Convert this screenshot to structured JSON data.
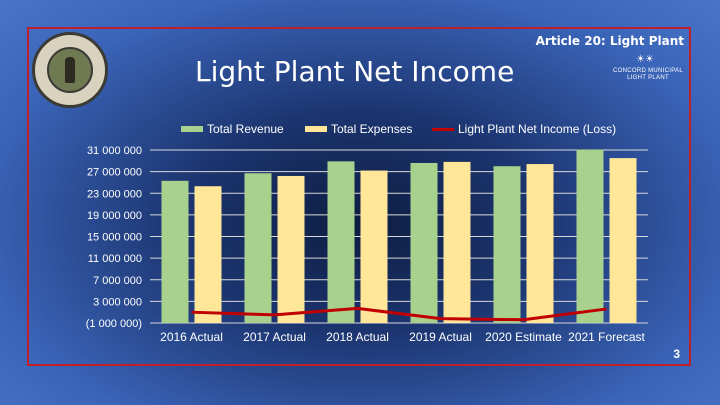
{
  "header": {
    "article": "Article 20: Light Plant",
    "title": "Light Plant Net Income",
    "logo_line1": "CONCORD MUNICIPAL",
    "logo_line2": "LIGHT PLANT"
  },
  "page_number": "3",
  "colors": {
    "revenue": "#a9d18e",
    "expenses": "#ffe699",
    "net_income": "#c00000",
    "gridline": "#d9d9d9"
  },
  "chart_data": {
    "type": "bar",
    "categories": [
      "2016 Actual",
      "2017 Actual",
      "2018 Actual",
      "2019 Actual",
      "2020 Estimate",
      "2021 Forecast"
    ],
    "series": [
      {
        "name": "Total Revenue",
        "type": "bar",
        "values": [
          25300000,
          26700000,
          28900000,
          28600000,
          28000000,
          31100000
        ]
      },
      {
        "name": "Total Expenses",
        "type": "bar",
        "values": [
          24300000,
          26200000,
          27200000,
          28800000,
          28400000,
          29500000
        ]
      },
      {
        "name": "Light Plant Net Income (Loss)",
        "type": "line",
        "values": [
          1000000,
          500000,
          1700000,
          -200000,
          -400000,
          1600000
        ]
      }
    ],
    "y_ticks": [
      "31 000 000",
      "27 000 000",
      "23 000 000",
      "19 000 000",
      "15 000 000",
      "11 000 000",
      "7 000 000",
      "3 000 000",
      "(1 000 000)"
    ],
    "ylim": [
      -1000000,
      31000000
    ],
    "legend_position": "top",
    "grid": true
  }
}
